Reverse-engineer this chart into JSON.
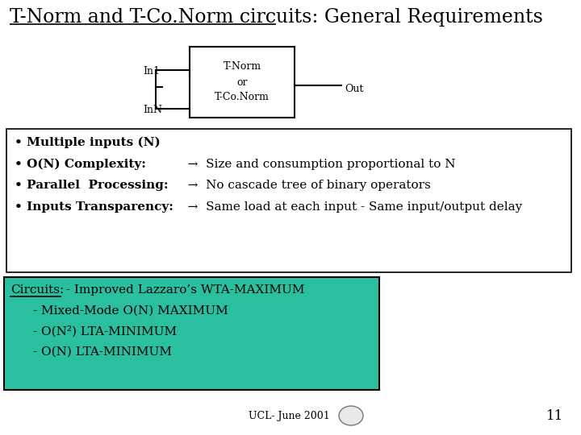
{
  "title_underlined": "T-Norm and T-Co.Norm circuits:",
  "title_rest": " General Requirements",
  "bg_color": "#ffffff",
  "teal_color": "#2abf9e",
  "box_outline": "#000000",
  "text_color": "#000000",
  "footer_text": "UCL- June 2001",
  "page_number": "11",
  "circuit_in1": "In1",
  "circuit_inn": "InN",
  "circuit_out": "Out",
  "circuit_box_line1": "T-Norm",
  "circuit_box_line2": "or",
  "circuit_box_line3": "T-Co.Norm",
  "circuits_header": "Circuits:",
  "circuits_item0": " - Improved Lazzaro’s WTA-MAXIMUM",
  "circuits_item1": "- Mixed-Mode O(N) MAXIMUM",
  "circuits_item2": "- O(N²) LTA-MINIMUM",
  "circuits_item3": "- O(N) LTA-MINIMUM",
  "bullet0_bold": "• Multiple inputs (N)",
  "bullet0_rest": "",
  "bullet1_bold": "• O(N) Complexity:",
  "bullet1_rest": "   →  Size and consumption proportional to N",
  "bullet2_bold": "• Parallel  Processing:",
  "bullet2_rest": "   →  No cascade tree of binary operators",
  "bullet3_bold": "• Inputs Transparency:",
  "bullet3_rest": "   →  Same load at each input - Same input/output delay"
}
